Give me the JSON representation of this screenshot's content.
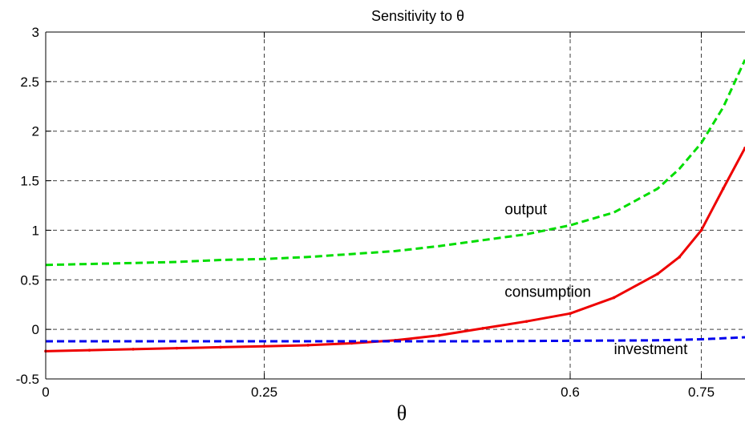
{
  "chart_data": {
    "type": "line",
    "title": "Sensitivity to θ",
    "xlabel": "θ",
    "ylabel": "",
    "xlim": [
      0,
      0.8
    ],
    "ylim": [
      -0.5,
      3
    ],
    "x_ticks": [
      0,
      0.25,
      0.6,
      0.75
    ],
    "x_tick_labels": [
      "0",
      "0.25",
      "0.6",
      "0.75"
    ],
    "y_ticks": [
      -0.5,
      0,
      0.5,
      1,
      1.5,
      2,
      2.5,
      3
    ],
    "y_tick_labels": [
      "-0.5",
      "0",
      "0.5",
      "1",
      "1.5",
      "2",
      "2.5",
      "3"
    ],
    "grid": true,
    "series": [
      {
        "name": "output",
        "color": "#00dd00",
        "style": "dashed",
        "x": [
          0,
          0.05,
          0.1,
          0.15,
          0.2,
          0.25,
          0.3,
          0.35,
          0.4,
          0.45,
          0.5,
          0.55,
          0.6,
          0.65,
          0.7,
          0.725,
          0.75,
          0.775,
          0.8
        ],
        "y": [
          0.65,
          0.66,
          0.67,
          0.68,
          0.7,
          0.71,
          0.73,
          0.76,
          0.79,
          0.84,
          0.9,
          0.96,
          1.05,
          1.18,
          1.42,
          1.62,
          1.88,
          2.24,
          2.72
        ]
      },
      {
        "name": "consumption",
        "color": "#ee0000",
        "style": "solid",
        "x": [
          0,
          0.05,
          0.1,
          0.15,
          0.2,
          0.25,
          0.3,
          0.35,
          0.4,
          0.45,
          0.5,
          0.55,
          0.6,
          0.65,
          0.7,
          0.725,
          0.75,
          0.775,
          0.8
        ],
        "y": [
          -0.22,
          -0.21,
          -0.2,
          -0.19,
          -0.18,
          -0.17,
          -0.16,
          -0.14,
          -0.11,
          -0.06,
          0.01,
          0.08,
          0.16,
          0.32,
          0.56,
          0.73,
          1.0,
          1.42,
          1.83
        ]
      },
      {
        "name": "investment",
        "color": "#0000ee",
        "style": "dashed",
        "x": [
          0,
          0.1,
          0.2,
          0.3,
          0.4,
          0.5,
          0.6,
          0.7,
          0.75,
          0.8
        ],
        "y": [
          -0.12,
          -0.12,
          -0.12,
          -0.12,
          -0.12,
          -0.12,
          -0.115,
          -0.11,
          -0.1,
          -0.08
        ]
      }
    ],
    "annotations": [
      {
        "text": "output",
        "x": 0.525,
        "y": 1.16
      },
      {
        "text": "consumption",
        "x": 0.525,
        "y": 0.33
      },
      {
        "text": "investment",
        "x": 0.65,
        "y": -0.25
      }
    ]
  }
}
